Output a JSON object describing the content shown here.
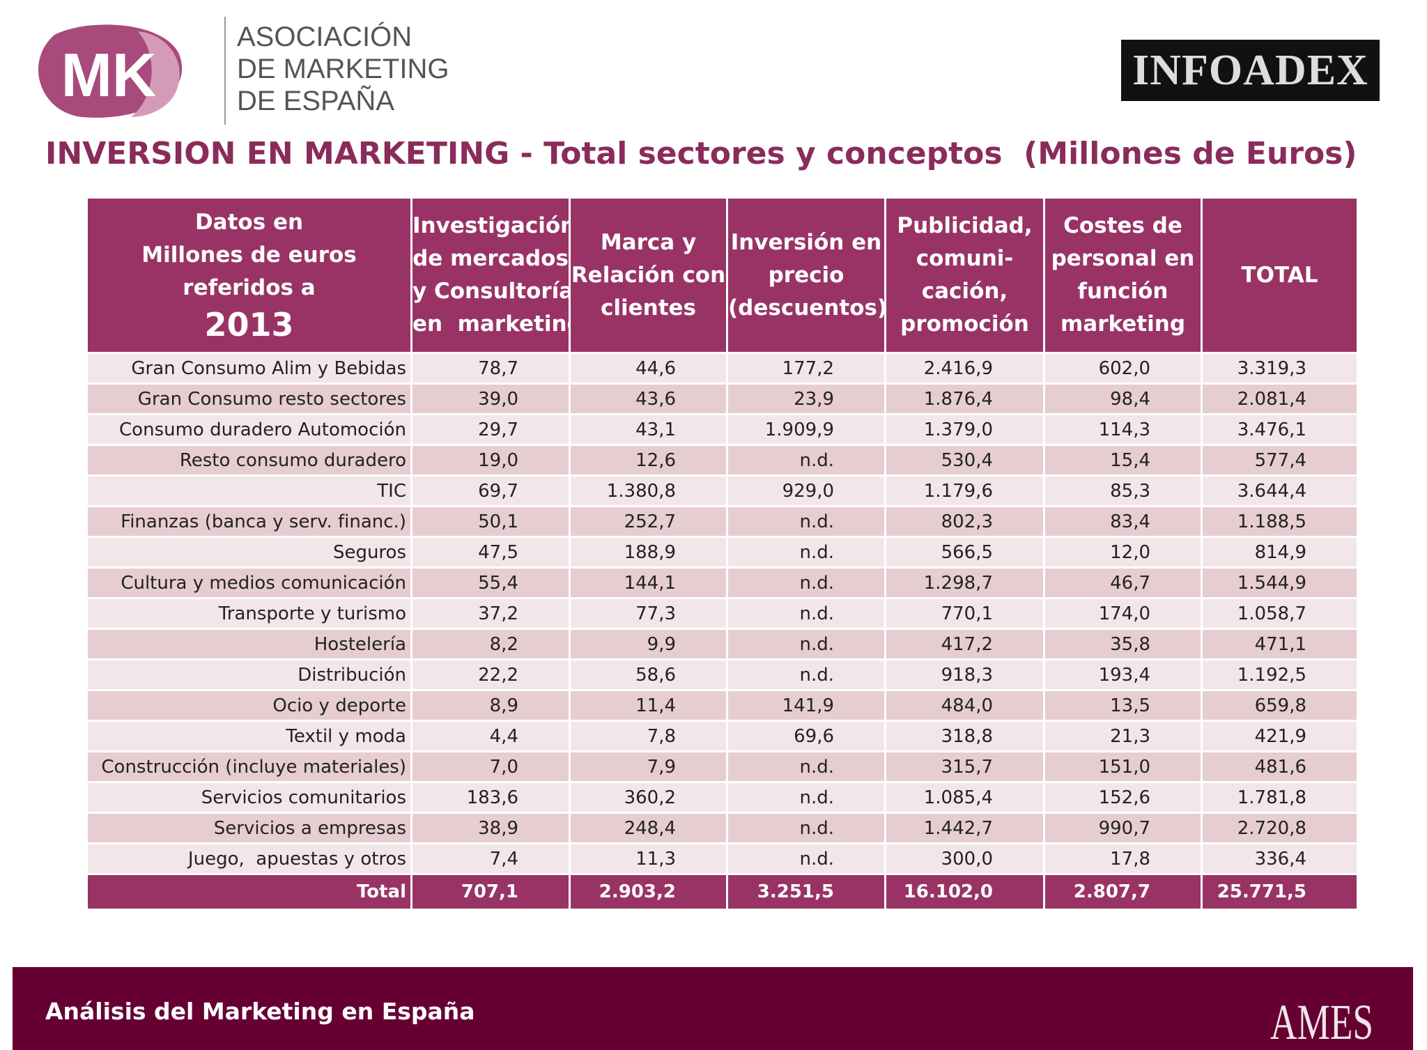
{
  "logos": {
    "mkt": "MK",
    "association": [
      "ASOCIACIÓN",
      "DE MARKETING",
      "DE ESPAÑA"
    ],
    "infoadex": "INFOADEX",
    "ames": "AMES"
  },
  "title": "INVERSION EN MARKETING - Total sectores y conceptos  (Millones de Euros)",
  "table": {
    "header": [
      {
        "lines": [
          "Datos en",
          "Millones de euros",
          "referidos a"
        ],
        "year": "2013"
      },
      {
        "lines": [
          "Investigación",
          "de mercados",
          "y Consultoría",
          "en  marketing"
        ]
      },
      {
        "lines": [
          "Marca y",
          "Relación con",
          "clientes"
        ]
      },
      {
        "lines": [
          "Inversión en",
          "precio",
          "(descuentos)"
        ]
      },
      {
        "lines": [
          "Publicidad,",
          "comuni-",
          "cación,",
          "promoción"
        ]
      },
      {
        "lines": [
          "Costes de",
          "personal en",
          "función",
          "marketing"
        ]
      },
      {
        "lines": [
          "TOTAL"
        ]
      }
    ],
    "rows": [
      [
        "Gran Consumo Alim y Bebidas",
        "78,7",
        "44,6",
        "177,2",
        "2.416,9",
        "602,0",
        "3.319,3"
      ],
      [
        "Gran Consumo resto sectores",
        "39,0",
        "43,6",
        "23,9",
        "1.876,4",
        "98,4",
        "2.081,4"
      ],
      [
        "Consumo duradero Automoción",
        "29,7",
        "43,1",
        "1.909,9",
        "1.379,0",
        "114,3",
        "3.476,1"
      ],
      [
        "Resto consumo duradero",
        "19,0",
        "12,6",
        "n.d.",
        "530,4",
        "15,4",
        "577,4"
      ],
      [
        "TIC",
        "69,7",
        "1.380,8",
        "929,0",
        "1.179,6",
        "85,3",
        "3.644,4"
      ],
      [
        "Finanzas (banca y serv. financ.)",
        "50,1",
        "252,7",
        "n.d.",
        "802,3",
        "83,4",
        "1.188,5"
      ],
      [
        "Seguros",
        "47,5",
        "188,9",
        "n.d.",
        "566,5",
        "12,0",
        "814,9"
      ],
      [
        "Cultura y medios comunicación",
        "55,4",
        "144,1",
        "n.d.",
        "1.298,7",
        "46,7",
        "1.544,9"
      ],
      [
        "Transporte y turismo",
        "37,2",
        "77,3",
        "n.d.",
        "770,1",
        "174,0",
        "1.058,7"
      ],
      [
        "Hostelería",
        "8,2",
        "9,9",
        "n.d.",
        "417,2",
        "35,8",
        "471,1"
      ],
      [
        "Distribución",
        "22,2",
        "58,6",
        "n.d.",
        "918,3",
        "193,4",
        "1.192,5"
      ],
      [
        "Ocio y deporte",
        "8,9",
        "11,4",
        "141,9",
        "484,0",
        "13,5",
        "659,8"
      ],
      [
        "Textil y moda",
        "4,4",
        "7,8",
        "69,6",
        "318,8",
        "21,3",
        "421,9"
      ],
      [
        "Construcción (incluye materiales)",
        "7,0",
        "7,9",
        "n.d.",
        "315,7",
        "151,0",
        "481,6"
      ],
      [
        "Servicios comunitarios",
        "183,6",
        "360,2",
        "n.d.",
        "1.085,4",
        "152,6",
        "1.781,8"
      ],
      [
        "Servicios a empresas",
        "38,9",
        "248,4",
        "n.d.",
        "1.442,7",
        "990,7",
        "2.720,8"
      ],
      [
        "Juego,  apuestas y otros",
        "7,4",
        "11,3",
        "n.d.",
        "300,0",
        "17,8",
        "336,4"
      ]
    ],
    "total": [
      "Total",
      "707,1",
      "2.903,2",
      "3.251,5",
      "16.102,0",
      "2.807,7",
      "25.771,5"
    ]
  },
  "footer": "Análisis del Marketing en España"
}
